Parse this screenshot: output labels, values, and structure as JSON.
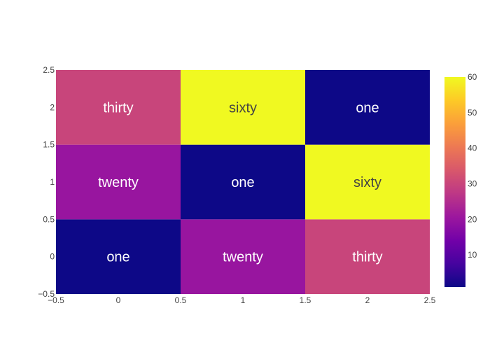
{
  "chart_data": {
    "type": "heatmap",
    "title": "",
    "xlabel": "",
    "ylabel": "",
    "x": [
      0,
      1,
      2
    ],
    "y": [
      0,
      1,
      2
    ],
    "xlim": [
      -0.5,
      2.5
    ],
    "ylim": [
      -0.5,
      2.5
    ],
    "z": [
      [
        1,
        20,
        30
      ],
      [
        20,
        1,
        60
      ],
      [
        30,
        60,
        1
      ]
    ],
    "text": [
      [
        "one",
        "twenty",
        "thirty"
      ],
      [
        "twenty",
        "one",
        "sixty"
      ],
      [
        "thirty",
        "sixty",
        "one"
      ]
    ],
    "x_ticks": [
      {
        "value": -0.5,
        "label": "−0.5"
      },
      {
        "value": 0,
        "label": "0"
      },
      {
        "value": 0.5,
        "label": "0.5"
      },
      {
        "value": 1,
        "label": "1"
      },
      {
        "value": 1.5,
        "label": "1.5"
      },
      {
        "value": 2,
        "label": "2"
      },
      {
        "value": 2.5,
        "label": "2.5"
      }
    ],
    "y_ticks": [
      {
        "value": -0.5,
        "label": "−0.5"
      },
      {
        "value": 0,
        "label": "0"
      },
      {
        "value": 0.5,
        "label": "0.5"
      },
      {
        "value": 1,
        "label": "1"
      },
      {
        "value": 1.5,
        "label": "1.5"
      },
      {
        "value": 2,
        "label": "2"
      },
      {
        "value": 2.5,
        "label": "2.5"
      }
    ],
    "colorscale": "plasma",
    "colorbar": {
      "range": [
        1,
        60
      ],
      "ticks": [
        {
          "value": 10,
          "label": "10"
        },
        {
          "value": 20,
          "label": "20"
        },
        {
          "value": 30,
          "label": "30"
        },
        {
          "value": 40,
          "label": "40"
        },
        {
          "value": 50,
          "label": "50"
        },
        {
          "value": 60,
          "label": "60"
        }
      ]
    },
    "grid": false,
    "legend": "none"
  }
}
